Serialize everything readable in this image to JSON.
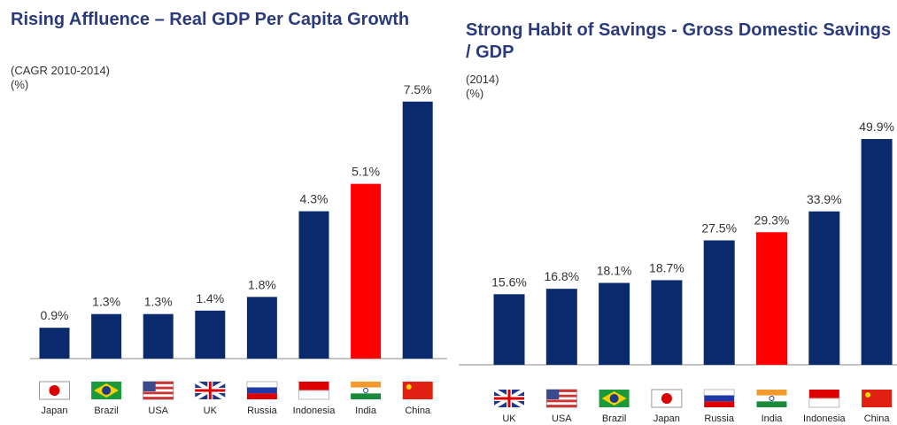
{
  "chart_data": [
    {
      "type": "bar",
      "title": "Rising Affluence – Real GDP Per Capita Growth",
      "subtitle": "(CAGR 2010-2014)",
      "unit_label": "(%)",
      "categories": [
        "Japan",
        "Brazil",
        "USA",
        "UK",
        "Russia",
        "Indonesia",
        "India",
        "China"
      ],
      "values": [
        0.9,
        1.3,
        1.3,
        1.4,
        1.8,
        4.3,
        5.1,
        7.5
      ],
      "value_labels": [
        "0.9%",
        "1.3%",
        "1.3%",
        "1.4%",
        "1.8%",
        "4.3%",
        "5.1%",
        "7.5%"
      ],
      "colors": [
        "#0b2a6e",
        "#0b2a6e",
        "#0b2a6e",
        "#0b2a6e",
        "#0b2a6e",
        "#0b2a6e",
        "#ff0000",
        "#0b2a6e"
      ]
    },
    {
      "type": "bar",
      "title": "Strong Habit of Savings - Gross Domestic Savings / GDP",
      "subtitle": "(2014)",
      "unit_label": "(%)",
      "categories": [
        "UK",
        "USA",
        "Brazil",
        "Japan",
        "Russia",
        "India",
        "Indonesia",
        "China"
      ],
      "values": [
        15.6,
        16.8,
        18.1,
        18.7,
        27.5,
        29.3,
        33.9,
        49.9
      ],
      "value_labels": [
        "15.6%",
        "16.8%",
        "18.1%",
        "18.7%",
        "27.5%",
        "29.3%",
        "33.9%",
        "49.9%"
      ],
      "colors": [
        "#0b2a6e",
        "#0b2a6e",
        "#0b2a6e",
        "#0b2a6e",
        "#0b2a6e",
        "#ff0000",
        "#0b2a6e",
        "#0b2a6e"
      ]
    }
  ]
}
